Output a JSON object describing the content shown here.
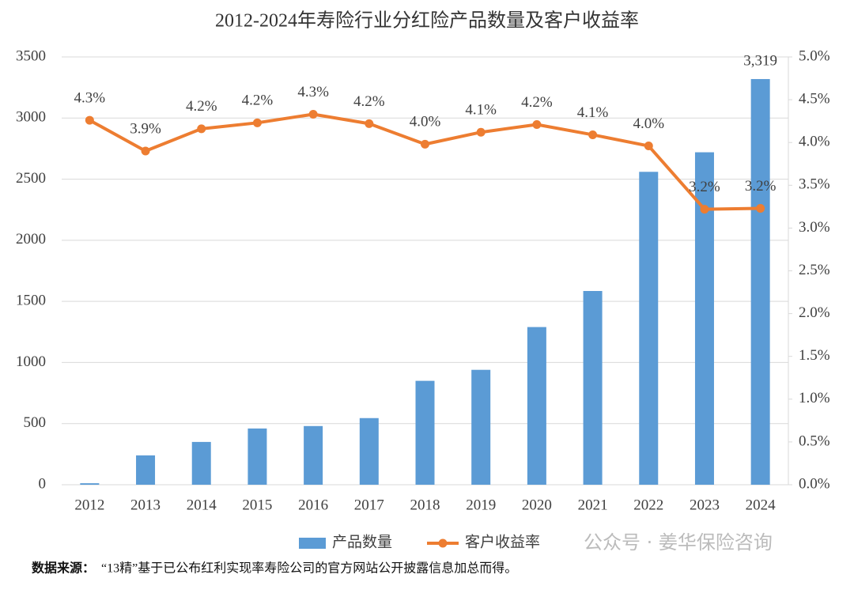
{
  "chart_data": {
    "type": "combo",
    "title": "2012-2024年寿险行业分红险产品数量及客户收益率",
    "categories": [
      "2012",
      "2013",
      "2014",
      "2015",
      "2016",
      "2017",
      "2018",
      "2019",
      "2020",
      "2021",
      "2022",
      "2023",
      "2024"
    ],
    "series": [
      {
        "name": "产品数量",
        "type": "bar",
        "color": "#5b9bd5",
        "values": [
          12,
          240,
          350,
          460,
          480,
          545,
          850,
          940,
          1290,
          1585,
          2560,
          2720,
          3319
        ],
        "value_labels": [
          null,
          null,
          null,
          null,
          null,
          null,
          null,
          null,
          null,
          null,
          null,
          null,
          "3,319"
        ]
      },
      {
        "name": "客户收益率",
        "type": "line",
        "color": "#ed7d31",
        "axis": "y2",
        "values": [
          4.26,
          3.9,
          4.16,
          4.23,
          4.33,
          4.22,
          3.98,
          4.12,
          4.21,
          4.09,
          3.96,
          3.22,
          3.23
        ],
        "value_labels": [
          "4.3%",
          "3.9%",
          "4.2%",
          "4.2%",
          "4.3%",
          "4.2%",
          "4.0%",
          "4.1%",
          "4.2%",
          "4.1%",
          "4.0%",
          "3.2%",
          "3.2%"
        ]
      }
    ],
    "ylim": [
      0,
      3500
    ],
    "yticks": [
      0,
      500,
      1000,
      1500,
      2000,
      2500,
      3000,
      3500
    ],
    "y2lim": [
      0,
      5
    ],
    "y2ticks": [
      {
        "value": 0,
        "label": "0.0%"
      },
      {
        "value": 0.5,
        "label": "0.5%"
      },
      {
        "value": 1,
        "label": "1.0%"
      },
      {
        "value": 1.5,
        "label": "1.5%"
      },
      {
        "value": 2,
        "label": "2.0%"
      },
      {
        "value": 2.5,
        "label": "2.5%"
      },
      {
        "value": 3,
        "label": "3.0%"
      },
      {
        "value": 3.5,
        "label": "3.5%"
      },
      {
        "value": 4,
        "label": "4.0%"
      },
      {
        "value": 4.5,
        "label": "4.5%"
      },
      {
        "value": 5,
        "label": "5.0%"
      }
    ],
    "grid": true,
    "legend": "bottom"
  },
  "footnote": {
    "label": "数据来源：",
    "text": "“13精”基于已公布红利实现率寿险公司的官方网站公开披露信息加总而得。"
  },
  "watermark": "公众号 · 姜华保险咨询"
}
